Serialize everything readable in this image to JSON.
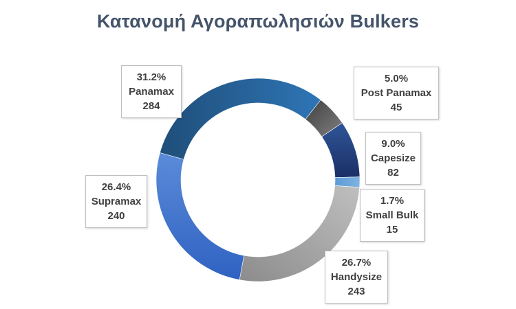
{
  "chart_data": {
    "type": "pie",
    "variant": "donut",
    "title": "Κατανομή Αγοραπωλησιών Bulkers",
    "slices": [
      {
        "name": "Post Panamax",
        "value": 45,
        "percent": "5.0%",
        "color": "#595959"
      },
      {
        "name": "Capesize",
        "value": 82,
        "percent": "9.0%",
        "color": "#1f3c78"
      },
      {
        "name": "Small Bulk",
        "value": 15,
        "percent": "1.7%",
        "color": "#5b9bd5"
      },
      {
        "name": "Handysize",
        "value": 243,
        "percent": "26.7%",
        "color": "#a5a5a5"
      },
      {
        "name": "Supramax",
        "value": 240,
        "percent": "26.4%",
        "color": "#4472c4"
      },
      {
        "name": "Panamax",
        "value": 284,
        "percent": "31.2%",
        "color": "#255e91"
      }
    ],
    "start_angle_deg": 38,
    "direction": "clockwise",
    "legend": "none",
    "data_labels": "callout boxes"
  },
  "labels": {
    "panamax": {
      "percent": "31.2%",
      "name": "Panamax",
      "value": "284"
    },
    "postpanamax": {
      "percent": "5.0%",
      "name": "Post Panamax",
      "value": "45"
    },
    "capesize": {
      "percent": "9.0%",
      "name": "Capesize",
      "value": "82"
    },
    "smallbulk": {
      "percent": "1.7%",
      "name": "Small Bulk",
      "value": "15"
    },
    "handysize": {
      "percent": "26.7%",
      "name": "Handysize",
      "value": "243"
    },
    "supramax": {
      "percent": "26.4%",
      "name": "Supramax",
      "value": "240"
    }
  }
}
